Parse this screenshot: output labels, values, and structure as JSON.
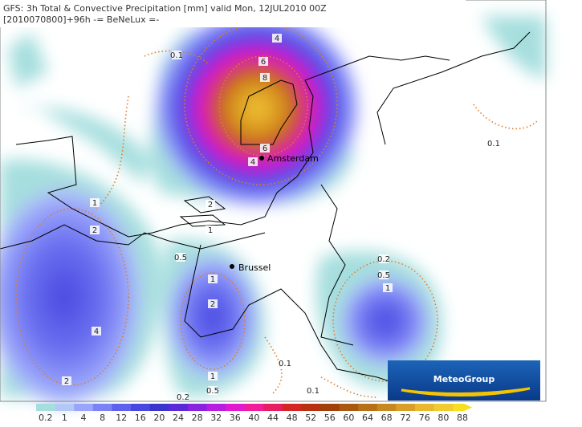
{
  "header": {
    "line1": "GFS: 3h Total & Convective Precipitation [mm] valid Mon, 12JUL2010 00Z",
    "line2": "[2010070800]+96h -= BeNeLux =-"
  },
  "cities": [
    "Amsterdam",
    "Brussel"
  ],
  "contour_labels": [
    "0.1",
    "4",
    "6",
    "8",
    "6",
    "4",
    "2",
    "1",
    "1",
    "2",
    "0.5",
    "1",
    "2",
    "4",
    "2",
    "1",
    "0.5",
    "0.2",
    "0.1",
    "0.1",
    "0.1",
    "0.2",
    "0.5",
    "1"
  ],
  "logo": "MeteoGroup",
  "legend": [
    {
      "value": 0.2,
      "color": "#a6dede"
    },
    {
      "value": 1,
      "color": "#b4c8f6"
    },
    {
      "value": 4,
      "color": "#9aa4fa"
    },
    {
      "value": 8,
      "color": "#7c82f6"
    },
    {
      "value": 12,
      "color": "#6060ee"
    },
    {
      "value": 16,
      "color": "#4848e0"
    },
    {
      "value": 20,
      "color": "#3a34cc"
    },
    {
      "value": 24,
      "color": "#5a28d8"
    },
    {
      "value": 28,
      "color": "#8a20e0"
    },
    {
      "value": 32,
      "color": "#b81ce0"
    },
    {
      "value": 36,
      "color": "#e018d0"
    },
    {
      "value": 40,
      "color": "#f01c9c"
    },
    {
      "value": 44,
      "color": "#e81c60"
    },
    {
      "value": 48,
      "color": "#d42424"
    },
    {
      "value": 52,
      "color": "#b83010"
    },
    {
      "value": 56,
      "color": "#a04008"
    },
    {
      "value": 60,
      "color": "#a85810"
    },
    {
      "value": 64,
      "color": "#b87018"
    },
    {
      "value": 68,
      "color": "#c88820"
    },
    {
      "value": 72,
      "color": "#d8a028"
    },
    {
      "value": 76,
      "color": "#e8b830"
    },
    {
      "value": 80,
      "color": "#f0cc30"
    },
    {
      "value": 88,
      "color": "#f4e020"
    }
  ]
}
